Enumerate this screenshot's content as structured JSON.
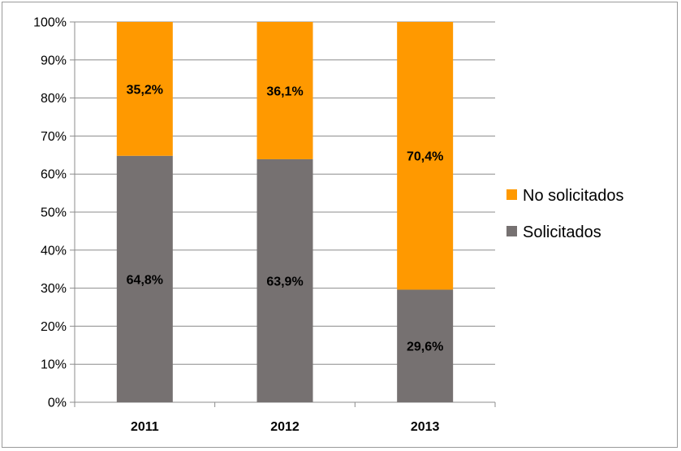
{
  "chart_data": {
    "type": "bar",
    "stacked": true,
    "normalized": true,
    "categories": [
      "2011",
      "2012",
      "2013"
    ],
    "series": [
      {
        "name": "Solicitados",
        "values": [
          64.8,
          63.9,
          29.6
        ],
        "labels": [
          "64,8%",
          "63,9%",
          "29,6%"
        ],
        "color": "#767171"
      },
      {
        "name": "No solicitados",
        "values": [
          35.2,
          36.1,
          70.4
        ],
        "labels": [
          "35,2%",
          "36,1%",
          "70,4%"
        ],
        "color": "#FF9900"
      }
    ],
    "ylim": [
      0,
      100
    ],
    "yticks": [
      "0%",
      "10%",
      "20%",
      "30%",
      "40%",
      "50%",
      "60%",
      "70%",
      "80%",
      "90%",
      "100%"
    ],
    "grid": true,
    "legend_position": "right",
    "legend_order": [
      "No solicitados",
      "Solicitados"
    ],
    "title": "",
    "xlabel": "",
    "ylabel": ""
  }
}
